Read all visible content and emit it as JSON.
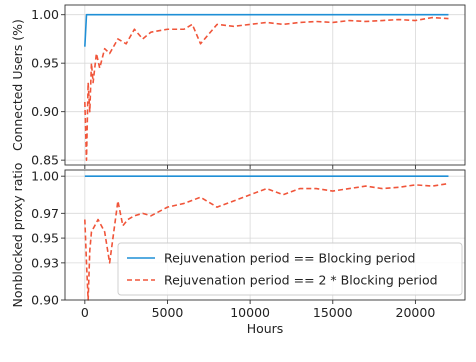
{
  "chart_data": [
    {
      "type": "line",
      "ylabel": "Connected Users (%)",
      "xlabel": "",
      "xlim": [
        -1200,
        23000
      ],
      "ylim": [
        0.845,
        1.01
      ],
      "xticks": [
        0,
        5000,
        10000,
        15000,
        20000
      ],
      "xtick_labels": [
        "",
        "",
        "",
        "",
        ""
      ],
      "yticks": [
        0.85,
        0.9,
        0.95,
        1.0
      ],
      "ytick_labels": [
        "0.85",
        "0.90",
        "0.95",
        "1.00"
      ],
      "grid": true,
      "series": [
        {
          "name": "Rejuvenation period == Blocking period",
          "color": "#1f8fd6",
          "style": "solid",
          "x": [
            0,
            100,
            200,
            22000
          ],
          "y": [
            0.967,
            1.0,
            1.0,
            1.0
          ]
        },
        {
          "name": "Rejuvenation period == 2 * Blocking period",
          "color": "#f0553a",
          "style": "dashed",
          "x": [
            0,
            100,
            200,
            300,
            400,
            500,
            700,
            900,
            1200,
            1500,
            2000,
            2500,
            3000,
            3500,
            4000,
            5000,
            6000,
            6500,
            7000,
            8000,
            9000,
            10000,
            11000,
            12000,
            13000,
            14000,
            15000,
            16000,
            17000,
            18000,
            19000,
            20000,
            21000,
            22000
          ],
          "y": [
            0.91,
            0.85,
            0.93,
            0.9,
            0.95,
            0.93,
            0.96,
            0.945,
            0.965,
            0.96,
            0.975,
            0.97,
            0.985,
            0.975,
            0.982,
            0.985,
            0.985,
            0.99,
            0.97,
            0.99,
            0.988,
            0.99,
            0.992,
            0.99,
            0.992,
            0.993,
            0.992,
            0.994,
            0.993,
            0.994,
            0.995,
            0.994,
            0.997,
            0.996
          ]
        }
      ]
    },
    {
      "type": "line",
      "ylabel": "Nonblocked proxy ratio",
      "xlabel": "Hours",
      "xlim": [
        -1200,
        23000
      ],
      "ylim": [
        0.9,
        1.005
      ],
      "xticks": [
        0,
        5000,
        10000,
        15000,
        20000
      ],
      "xtick_labels": [
        "0",
        "5000",
        "10000",
        "15000",
        "20000"
      ],
      "yticks": [
        0.9,
        0.93,
        0.95,
        0.97,
        1.0
      ],
      "ytick_labels": [
        "0.90",
        "0.93",
        "0.95",
        "0.97",
        "1.00"
      ],
      "grid": true,
      "legend": "lower-right",
      "series": [
        {
          "name": "Rejuvenation period == Blocking period",
          "color": "#1f8fd6",
          "style": "solid",
          "x": [
            0,
            22000
          ],
          "y": [
            1.0,
            1.0
          ]
        },
        {
          "name": "Rejuvenation period == 2 * Blocking period",
          "color": "#f0553a",
          "style": "dashed",
          "x": [
            0,
            100,
            200,
            300,
            400,
            600,
            800,
            1200,
            1500,
            1800,
            2000,
            2300,
            2600,
            3000,
            3500,
            4000,
            5000,
            6000,
            7000,
            8000,
            9000,
            10000,
            11000,
            12000,
            13000,
            14000,
            15000,
            16000,
            17000,
            18000,
            19000,
            20000,
            21000,
            22000
          ],
          "y": [
            0.965,
            0.93,
            0.9,
            0.94,
            0.955,
            0.96,
            0.965,
            0.955,
            0.93,
            0.96,
            0.98,
            0.96,
            0.965,
            0.968,
            0.97,
            0.968,
            0.975,
            0.978,
            0.983,
            0.975,
            0.98,
            0.985,
            0.99,
            0.985,
            0.99,
            0.99,
            0.988,
            0.99,
            0.992,
            0.99,
            0.991,
            0.993,
            0.992,
            0.994
          ]
        }
      ]
    }
  ]
}
